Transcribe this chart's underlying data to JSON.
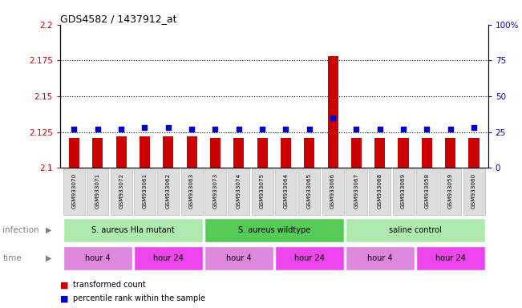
{
  "title": "GDS4582 / 1437912_at",
  "samples": [
    "GSM933070",
    "GSM933071",
    "GSM933072",
    "GSM933061",
    "GSM933062",
    "GSM933063",
    "GSM933073",
    "GSM933074",
    "GSM933075",
    "GSM933064",
    "GSM933065",
    "GSM933066",
    "GSM933067",
    "GSM933068",
    "GSM933069",
    "GSM933058",
    "GSM933059",
    "GSM933060"
  ],
  "red_values": [
    2.121,
    2.121,
    2.122,
    2.122,
    2.122,
    2.122,
    2.121,
    2.121,
    2.121,
    2.121,
    2.121,
    2.178,
    2.121,
    2.121,
    2.121,
    2.121,
    2.121,
    2.121
  ],
  "blue_values": [
    27,
    27,
    27,
    28,
    28,
    27,
    27,
    27,
    27,
    27,
    27,
    35,
    27,
    27,
    27,
    27,
    27,
    28
  ],
  "ylim_left": [
    2.1,
    2.2
  ],
  "ylim_right": [
    0,
    100
  ],
  "yticks_left": [
    2.1,
    2.125,
    2.15,
    2.175,
    2.2
  ],
  "yticks_right": [
    0,
    25,
    50,
    75,
    100
  ],
  "ytick_labels_left": [
    "2.1",
    "2.125",
    "2.15",
    "2.175",
    "2.2"
  ],
  "ytick_labels_right": [
    "0",
    "25",
    "50",
    "75",
    "100%"
  ],
  "hlines": [
    2.125,
    2.15,
    2.175
  ],
  "bar_bottom": 2.1,
  "infection_groups": [
    {
      "label": "S. aureus Hla mutant",
      "start": 0,
      "end": 6,
      "color": "#aeeaae"
    },
    {
      "label": "S. aureus wildtype",
      "start": 6,
      "end": 12,
      "color": "#55cc55"
    },
    {
      "label": "saline control",
      "start": 12,
      "end": 18,
      "color": "#aeeaae"
    }
  ],
  "time_groups": [
    {
      "label": "hour 4",
      "start": 0,
      "end": 3,
      "color": "#dd88dd"
    },
    {
      "label": "hour 24",
      "start": 3,
      "end": 6,
      "color": "#ee44ee"
    },
    {
      "label": "hour 4",
      "start": 6,
      "end": 9,
      "color": "#dd88dd"
    },
    {
      "label": "hour 24",
      "start": 9,
      "end": 12,
      "color": "#ee44ee"
    },
    {
      "label": "hour 4",
      "start": 12,
      "end": 15,
      "color": "#dd88dd"
    },
    {
      "label": "hour 24",
      "start": 15,
      "end": 18,
      "color": "#ee44ee"
    }
  ],
  "red_color": "#CC0000",
  "blue_color": "#0000CC",
  "left_tick_color": "#CC0000",
  "right_tick_color": "#0000CC",
  "background_color": "#FFFFFF",
  "plot_bg_color": "#FFFFFF",
  "grid_color": "#000000",
  "label_infection": "infection",
  "label_time": "time",
  "legend_red": "transformed count",
  "legend_blue": "percentile rank within the sample",
  "bar_width": 0.45,
  "blue_marker_size": 20,
  "xtick_bg": "#dddddd",
  "xtick_border": "#aaaaaa"
}
